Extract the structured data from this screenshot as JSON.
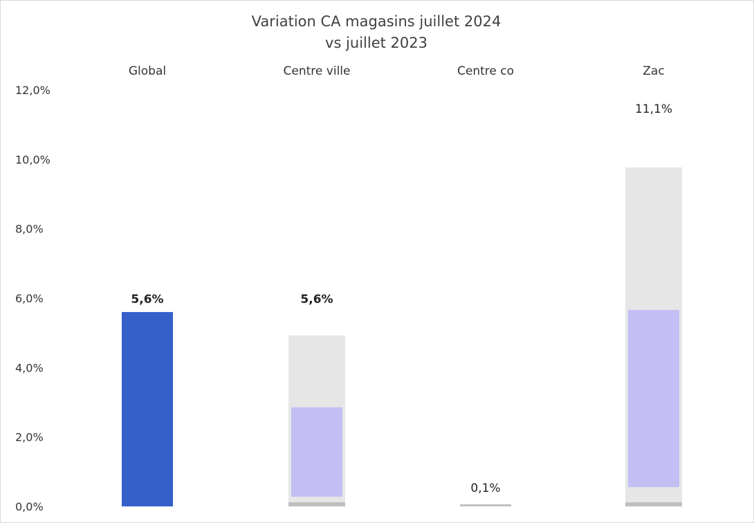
{
  "chart_data": {
    "type": "bar",
    "title_lines": [
      "Variation CA magasins juillet 2024",
      "vs juillet 2023"
    ],
    "categories": [
      "Global",
      "Centre ville",
      "Centre co",
      "Zac"
    ],
    "series": [
      {
        "values": [
          5.6,
          5.6,
          0.1,
          11.1
        ]
      }
    ],
    "data_labels": [
      "5,6%",
      "5,6%",
      "0,1%",
      "11,1%"
    ],
    "y_ticks": [
      {
        "value": 0,
        "label": "0,0%"
      },
      {
        "value": 2,
        "label": "2,0%"
      },
      {
        "value": 4,
        "label": "4,0%"
      },
      {
        "value": 6,
        "label": "6,0%"
      },
      {
        "value": 8,
        "label": "8,0%"
      },
      {
        "value": 10,
        "label": "10,0%"
      },
      {
        "value": 12,
        "label": "12,0%"
      }
    ],
    "ylim": [
      0,
      12
    ],
    "grid": false,
    "legend": "none",
    "category_labels_position": "top",
    "colors": {
      "global": "#3560c9",
      "faded_fill": "#c3bff5",
      "faded_shadow": "#e6e6e6",
      "baseline": "#bfbfbf"
    }
  }
}
